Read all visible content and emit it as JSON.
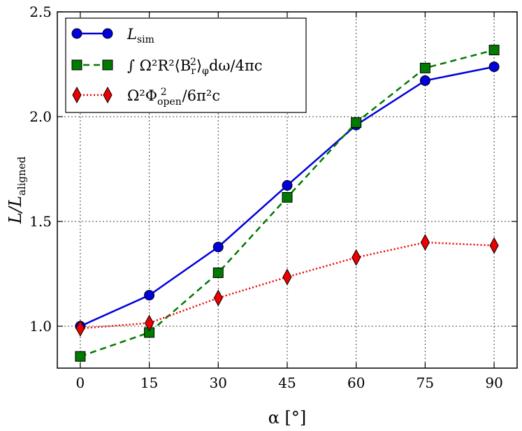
{
  "chart_data": {
    "type": "line",
    "x": [
      0,
      15,
      30,
      45,
      60,
      75,
      90
    ],
    "xticks": [
      "0",
      "15",
      "30",
      "45",
      "60",
      "75",
      "90"
    ],
    "yticks": [
      "1.0",
      "1.5",
      "2.0",
      "2.5"
    ],
    "xlim": [
      -5,
      95
    ],
    "ylim": [
      0.8,
      2.5
    ],
    "xlabel": "α [°]",
    "ylabel_main": "L/L",
    "ylabel_sub": "aligned",
    "grid": true,
    "legend_position": "top-left",
    "series": [
      {
        "name": "L_sim",
        "legend_main": "L",
        "legend_sub": "sim",
        "color": "#0000dd",
        "marker": "circle",
        "linestyle": "solid",
        "values": [
          1.0,
          1.148,
          1.378,
          1.672,
          1.96,
          2.172,
          2.238
        ]
      },
      {
        "name": "∫ Ω²R²⟨B_r²⟩_φ dω/4πc",
        "legend_text": "∫ Ω²R²⟨B",
        "legend_sub": "r",
        "legend_sup": "2",
        "legend_tail": "⟩",
        "legend_sub2": "φ",
        "legend_end": "dω/4πc",
        "color": "#007a00",
        "marker": "square",
        "linestyle": "dashed",
        "values": [
          0.856,
          0.97,
          1.255,
          1.615,
          1.972,
          2.232,
          2.318
        ]
      },
      {
        "name": "Ω²Φ²_open/6π²c",
        "legend_text": "Ω²Φ",
        "legend_sub": "open",
        "legend_sup": "2",
        "legend_end": "/6π²c",
        "color": "#ee0000",
        "marker": "diamond",
        "linestyle": "dotted",
        "values": [
          0.99,
          1.015,
          1.135,
          1.235,
          1.328,
          1.4,
          1.385
        ]
      }
    ]
  }
}
